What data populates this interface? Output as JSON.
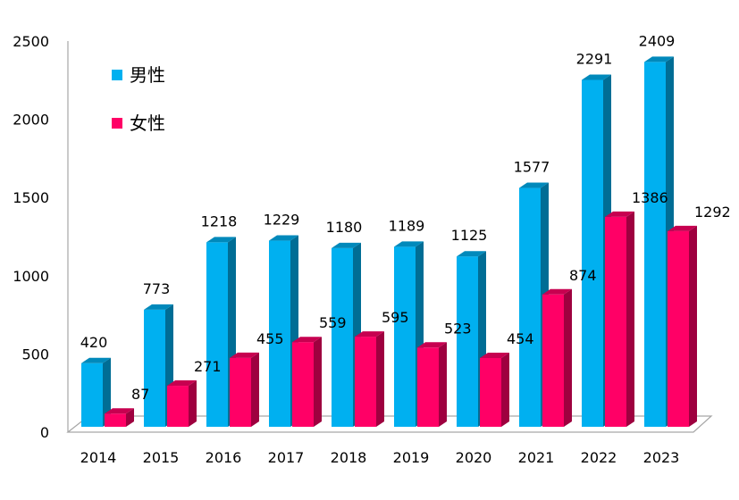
{
  "chart_data": {
    "type": "bar",
    "categories": [
      "2014",
      "2015",
      "2016",
      "2017",
      "2018",
      "2019",
      "2020",
      "2021",
      "2022",
      "2023"
    ],
    "series": [
      {
        "name": "男性",
        "color": "#00B0F0",
        "values": [
          420,
          773,
          1218,
          1229,
          1180,
          1189,
          1125,
          1577,
          2291,
          2409
        ]
      },
      {
        "name": "女性",
        "color": "#FF0066",
        "values": [
          87,
          271,
          455,
          559,
          595,
          523,
          454,
          874,
          1386,
          1292
        ]
      }
    ],
    "ylim": [
      0,
      2500
    ],
    "yticks": [
      "0",
      "500",
      "1000",
      "1500",
      "2000",
      "2500"
    ],
    "grid": false,
    "legend_position": "top-left",
    "title": "",
    "xlabel": "",
    "ylabel": ""
  }
}
